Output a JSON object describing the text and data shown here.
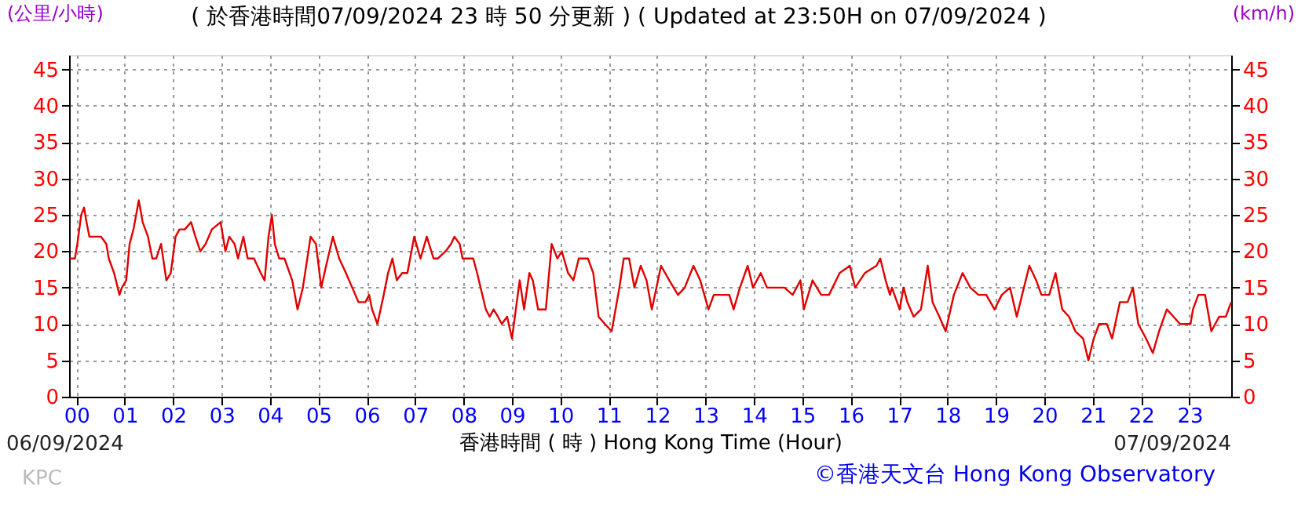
{
  "chart_data": {
    "type": "line",
    "title": "( 於香港時間07/09/2024 23 時 50 分更新 ) ( Updated at 23:50H on 07/09/2024 )",
    "xlabel": "香港時間 ( 時 )  Hong Kong Time (Hour)",
    "ylabel": "(公里/小時)",
    "y2label": "(km/h)",
    "annotations": [
      "06/09/2024",
      "07/09/2024",
      "KPC",
      "©香港天文台 Hong Kong Observatory"
    ],
    "x": [
      -0.14,
      -0.03,
      0.02,
      0.1,
      0.16,
      0.21,
      0.27,
      0.4,
      0.51,
      0.62,
      0.67,
      0.78,
      0.89,
      0.94,
      1.03,
      1.1,
      1.18,
      1.29,
      1.37,
      1.48,
      1.57,
      1.65,
      1.75,
      1.86,
      1.95,
      2.05,
      2.13,
      2.24,
      2.37,
      2.46,
      2.56,
      2.67,
      2.8,
      2.98,
      3.08,
      3.16,
      3.27,
      3.34,
      3.45,
      3.54,
      3.67,
      3.81,
      3.89,
      3.97,
      4.04,
      4.1,
      4.19,
      4.3,
      4.46,
      4.57,
      4.68,
      4.84,
      4.95,
      5.06,
      5.16,
      5.3,
      5.43,
      5.57,
      5.7,
      5.83,
      5.97,
      6.05,
      6.11,
      6.22,
      6.35,
      6.44,
      6.53,
      6.62,
      6.73,
      6.84,
      6.98,
      7.11,
      7.24,
      7.38,
      7.47,
      7.63,
      7.74,
      7.81,
      7.92,
      7.98,
      8.2,
      8.28,
      8.46,
      8.54,
      8.62,
      8.71,
      8.79,
      8.9,
      9.0,
      9.08,
      9.16,
      9.25,
      9.36,
      9.43,
      9.54,
      9.7,
      9.82,
      9.94,
      10.03,
      10.16,
      10.27,
      10.38,
      10.57,
      10.68,
      10.79,
      10.92,
      11.06,
      11.22,
      11.31,
      11.42,
      11.53,
      11.66,
      11.78,
      11.89,
      12.08,
      12.25,
      12.43,
      12.57,
      12.75,
      12.89,
      13.06,
      13.17,
      13.49,
      13.58,
      13.71,
      13.87,
      13.98,
      14.14,
      14.27,
      14.63,
      14.8,
      14.96,
      15.03,
      15.21,
      15.39,
      15.55,
      15.77,
      15.98,
      16.09,
      16.29,
      16.53,
      16.61,
      16.72,
      16.81,
      16.85,
      17.01,
      17.09,
      17.17,
      17.3,
      17.45,
      17.59,
      17.69,
      17.83,
      17.96,
      18.13,
      18.31,
      18.47,
      18.64,
      18.8,
      18.97,
      19.12,
      19.29,
      19.43,
      19.54,
      19.69,
      19.83,
      19.94,
      20.1,
      20.23,
      20.37,
      20.51,
      20.64,
      20.8,
      20.91,
      21.02,
      21.13,
      21.29,
      21.4,
      21.56,
      21.72,
      21.83,
      21.94,
      22.1,
      22.24,
      22.37,
      22.53,
      22.67,
      22.8,
      23.02,
      23.07,
      23.18,
      23.32,
      23.45,
      23.61,
      23.75,
      23.86
    ],
    "series": [
      {
        "color": "#e00000",
        "values": [
          19,
          19,
          21,
          25,
          26,
          24,
          22,
          22,
          22,
          21,
          19,
          17,
          14,
          15,
          16,
          21,
          23,
          27,
          24,
          22,
          19,
          19,
          21,
          16,
          17,
          22,
          23,
          23,
          24,
          22,
          20,
          21,
          23,
          24,
          20,
          22,
          21,
          19,
          22,
          19,
          19,
          17,
          16,
          22,
          25,
          21,
          19,
          19,
          16,
          12,
          15,
          22,
          21,
          15,
          18,
          22,
          19,
          17,
          15,
          13,
          13,
          14,
          12,
          10,
          14,
          17,
          19,
          16,
          17,
          17,
          22,
          19,
          22,
          19,
          19,
          20,
          21,
          22,
          21,
          19,
          19,
          17,
          12,
          11,
          12,
          11,
          10,
          11,
          8,
          12,
          16,
          12,
          17,
          16,
          12,
          12,
          21,
          19,
          20,
          17,
          16,
          19,
          19,
          17,
          11,
          10,
          9,
          15,
          19,
          19,
          15,
          18,
          16,
          12,
          18,
          16,
          14,
          15,
          18,
          16,
          12,
          14,
          14,
          12,
          15,
          18,
          15,
          17,
          15,
          15,
          14,
          16,
          12,
          16,
          14,
          14,
          17,
          18,
          15,
          17,
          18,
          19,
          16,
          14,
          15,
          12,
          15,
          13,
          11,
          12,
          18,
          13,
          11,
          9,
          14,
          17,
          15,
          14,
          14,
          12,
          14,
          15,
          11,
          14,
          18,
          16,
          14,
          14,
          17,
          12,
          11,
          9,
          8,
          5,
          8,
          10,
          10,
          8,
          13,
          13,
          15,
          10,
          8,
          6,
          9,
          12,
          11,
          10,
          10,
          12,
          14,
          14,
          9,
          11,
          11,
          13
        ]
      }
    ],
    "xlim": [
      -0.15,
      23.86
    ],
    "xticks": [
      {
        "value": 0,
        "label": "00"
      },
      {
        "value": 1,
        "label": "01"
      },
      {
        "value": 2,
        "label": "02"
      },
      {
        "value": 3,
        "label": "03"
      },
      {
        "value": 4,
        "label": "04"
      },
      {
        "value": 5,
        "label": "05"
      },
      {
        "value": 6,
        "label": "06"
      },
      {
        "value": 7,
        "label": "07"
      },
      {
        "value": 8,
        "label": "08"
      },
      {
        "value": 9,
        "label": "09"
      },
      {
        "value": 10,
        "label": "10"
      },
      {
        "value": 11,
        "label": "11"
      },
      {
        "value": 12,
        "label": "12"
      },
      {
        "value": 13,
        "label": "13"
      },
      {
        "value": 14,
        "label": "14"
      },
      {
        "value": 15,
        "label": "15"
      },
      {
        "value": 16,
        "label": "16"
      },
      {
        "value": 17,
        "label": "17"
      },
      {
        "value": 18,
        "label": "18"
      },
      {
        "value": 19,
        "label": "19"
      },
      {
        "value": 20,
        "label": "20"
      },
      {
        "value": 21,
        "label": "21"
      },
      {
        "value": 22,
        "label": "22"
      },
      {
        "value": 23,
        "label": "23"
      }
    ],
    "ylim": [
      0,
      47
    ],
    "yticks": [
      0,
      5,
      10,
      15,
      20,
      25,
      30,
      35,
      40,
      45
    ],
    "y2lim": [
      0,
      47
    ],
    "y2ticks": [
      0,
      5,
      10,
      15,
      20,
      25,
      30,
      35,
      40,
      45
    ],
    "grid": true,
    "line_style": "solid",
    "marker": "none"
  }
}
